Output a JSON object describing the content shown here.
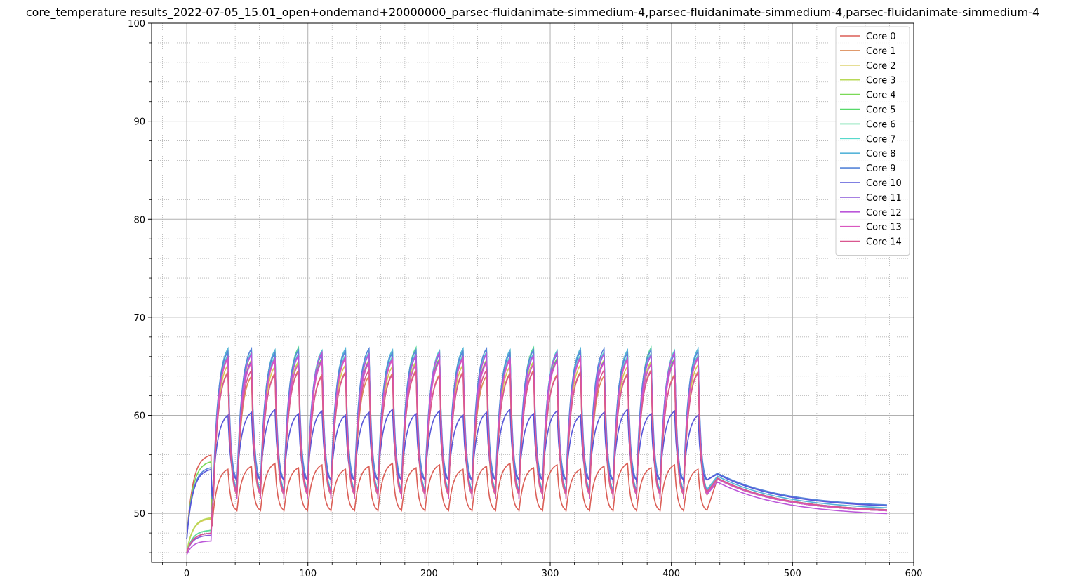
{
  "chart_data": {
    "type": "line",
    "title": "core_temperature results_2022-07-05_15.01_open+ondemand+20000000_parsec-fluidanimate-simmedium-4,parsec-fluidanimate-simmedium-4,parsec-fluidanimate-simmedium-4",
    "xlabel": "",
    "ylabel": "",
    "xlim": [
      -29,
      600
    ],
    "ylim": [
      45,
      100
    ],
    "x_ticks": [
      0,
      100,
      200,
      300,
      400,
      500,
      600
    ],
    "y_ticks": [
      50,
      60,
      70,
      80,
      90,
      100
    ],
    "grid": true,
    "minor_grid": true,
    "legend_position": "top-right",
    "series_shape": {
      "warmup_end": 20,
      "cycle_count": 21,
      "cycle_period": 19.4,
      "cycle_start": 22,
      "load_end": 430,
      "x_end": 580
    },
    "series": [
      {
        "name": "Core 0",
        "color": "#db5f57",
        "start": 47.4,
        "warm": 56.1,
        "base": 50.2,
        "peak": 54.5,
        "final": 50.0
      },
      {
        "name": "Core 1",
        "color": "#db8b57",
        "start": 46.0,
        "warm": 48.0,
        "base": 51.5,
        "peak": 64.0,
        "final": 50.0
      },
      {
        "name": "Core 2",
        "color": "#d6c955",
        "start": 46.0,
        "warm": 49.5,
        "base": 51.8,
        "peak": 65.0,
        "final": 50.0
      },
      {
        "name": "Core 3",
        "color": "#b8d957",
        "start": 46.0,
        "warm": 49.6,
        "base": 51.8,
        "peak": 65.5,
        "final": 50.0
      },
      {
        "name": "Core 4",
        "color": "#7ad957",
        "start": 47.4,
        "warm": 55.4,
        "base": 52.0,
        "peak": 65.8,
        "final": 50.1
      },
      {
        "name": "Core 5",
        "color": "#57d96a",
        "start": 46.0,
        "warm": 48.3,
        "base": 52.0,
        "peak": 66.0,
        "final": 50.1
      },
      {
        "name": "Core 6",
        "color": "#57d99a",
        "start": 46.0,
        "warm": 48.3,
        "base": 52.0,
        "peak": 66.3,
        "final": 50.1
      },
      {
        "name": "Core 7",
        "color": "#57d9cc",
        "start": 46.0,
        "warm": 48.0,
        "base": 52.0,
        "peak": 66.0,
        "final": 50.1
      },
      {
        "name": "Core 8",
        "color": "#57b5d9",
        "start": 46.0,
        "warm": 48.0,
        "base": 52.0,
        "peak": 66.2,
        "final": 50.3
      },
      {
        "name": "Core 9",
        "color": "#5785d9",
        "start": 47.4,
        "warm": 54.8,
        "base": 53.0,
        "peak": 66.2,
        "final": 50.6
      },
      {
        "name": "Core 10",
        "color": "#5757d9",
        "start": 47.4,
        "warm": 54.6,
        "base": 53.2,
        "peak": 60.0,
        "final": 50.5
      },
      {
        "name": "Core 11",
        "color": "#8957d9",
        "start": 46.0,
        "warm": 47.8,
        "base": 51.8,
        "peak": 65.5,
        "final": 50.0
      },
      {
        "name": "Core 12",
        "color": "#bb57d9",
        "start": 45.8,
        "warm": 47.2,
        "base": 51.5,
        "peak": 65.8,
        "final": 49.7
      },
      {
        "name": "Core 13",
        "color": "#d957c0",
        "start": 46.0,
        "warm": 48.0,
        "base": 51.6,
        "peak": 65.2,
        "final": 50.0
      },
      {
        "name": "Core 14",
        "color": "#d9578f",
        "start": 46.0,
        "warm": 48.0,
        "base": 51.8,
        "peak": 64.0,
        "final": 50.1
      }
    ]
  }
}
